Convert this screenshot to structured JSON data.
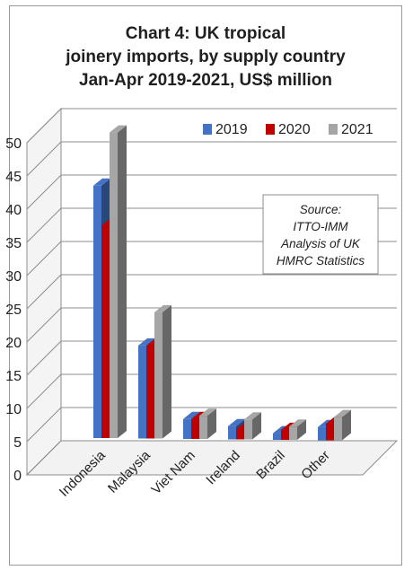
{
  "chart_data": {
    "type": "bar",
    "title_lines": [
      "Chart 4: UK tropical",
      "joinery imports, by supply country",
      "Jan-Apr 2019-2021, US$ million"
    ],
    "categories": [
      "Indonesia",
      "Malaysia",
      "Viet Nam",
      "Ireland",
      "Brazil",
      "Other"
    ],
    "series": [
      {
        "name": "2019",
        "color": "#4472c4",
        "values": [
          38,
          14,
          3,
          2,
          1,
          2
        ]
      },
      {
        "name": "2020",
        "color": "#c00000",
        "values": [
          32,
          14,
          3,
          1.5,
          1.5,
          2.5
        ]
      },
      {
        "name": "2021",
        "color": "#a6a6a6",
        "values": [
          46,
          19,
          3.5,
          3,
          2,
          3.5
        ]
      }
    ],
    "y_ticks": [
      "0",
      "5",
      "10",
      "15",
      "20",
      "25",
      "30",
      "35",
      "40",
      "45",
      "50"
    ],
    "ylim": [
      0,
      50
    ],
    "grid": true,
    "legend_position": "top-right",
    "annotation_lines": [
      "Source:",
      "ITTO-IMM",
      "Analysis of UK",
      "HMRC Statistics"
    ]
  }
}
